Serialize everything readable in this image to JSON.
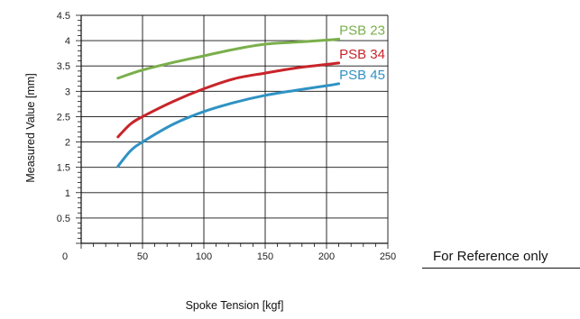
{
  "chart_data": {
    "type": "line",
    "xlabel": "Spoke Tension [kgf]",
    "ylabel": "Measured Value [mm]",
    "xlim": [
      0,
      250
    ],
    "ylim": [
      0,
      4.5
    ],
    "x_ticks": [
      "0",
      "50",
      "100",
      "150",
      "200",
      "250"
    ],
    "y_ticks": [
      "0.5",
      "1",
      "1.5",
      "2",
      "2.5",
      "3",
      "3.5",
      "4",
      "4.5"
    ],
    "grid": true,
    "legend": "inline labels at right end of each line",
    "series": [
      {
        "name": "PSB 23",
        "color": "#7aaf4b",
        "points": [
          [
            30,
            3.26
          ],
          [
            50,
            3.42
          ],
          [
            75,
            3.57
          ],
          [
            100,
            3.7
          ],
          [
            125,
            3.83
          ],
          [
            150,
            3.93
          ],
          [
            175,
            3.97
          ],
          [
            200,
            4.01
          ],
          [
            210,
            4.03
          ]
        ]
      },
      {
        "name": "PSB 34",
        "color": "#c8242a",
        "points": [
          [
            30,
            2.1
          ],
          [
            40,
            2.35
          ],
          [
            50,
            2.5
          ],
          [
            75,
            2.8
          ],
          [
            100,
            3.05
          ],
          [
            125,
            3.25
          ],
          [
            150,
            3.36
          ],
          [
            175,
            3.46
          ],
          [
            200,
            3.53
          ],
          [
            210,
            3.56
          ]
        ]
      },
      {
        "name": "PSB 45",
        "color": "#3092c4",
        "points": [
          [
            30,
            1.52
          ],
          [
            40,
            1.82
          ],
          [
            50,
            2.0
          ],
          [
            75,
            2.35
          ],
          [
            100,
            2.6
          ],
          [
            125,
            2.78
          ],
          [
            150,
            2.92
          ],
          [
            175,
            3.02
          ],
          [
            200,
            3.11
          ],
          [
            210,
            3.15
          ]
        ]
      }
    ]
  },
  "note": "For Reference only"
}
